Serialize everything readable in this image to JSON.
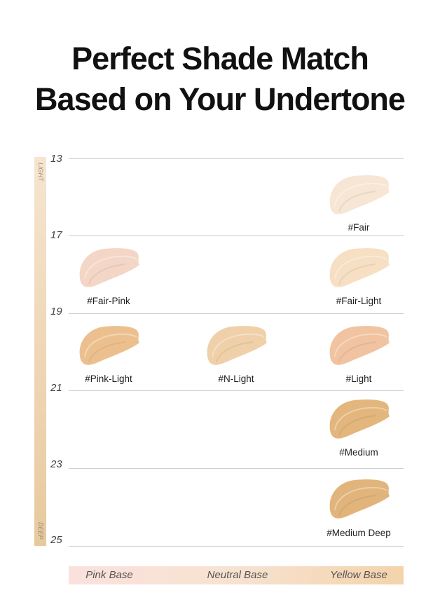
{
  "title": {
    "line1": "Perfect Shade Match",
    "line2": "Based on Your Undertone"
  },
  "scale": {
    "light_label": "LIGHT",
    "deep_label": "DEEP",
    "levels": [
      "13",
      "17",
      "19",
      "21",
      "23",
      "25"
    ]
  },
  "bases": [
    "Pink Base",
    "Neutral Base",
    "Yellow Base"
  ],
  "shades": [
    {
      "name": "#Fair",
      "base": "Yellow Base",
      "color": "#f6e6d3"
    },
    {
      "name": "#Fair-Pink",
      "base": "Pink Base",
      "color": "#f3d6c6"
    },
    {
      "name": "#Fair-Light",
      "base": "Yellow Base",
      "color": "#f6dfc3"
    },
    {
      "name": "#Pink-Light",
      "base": "Pink Base",
      "color": "#ecc08e"
    },
    {
      "name": "#N-Light",
      "base": "Neutral Base",
      "color": "#efd0a9"
    },
    {
      "name": "#Light",
      "base": "Yellow Base",
      "color": "#f1c3a0"
    },
    {
      "name": "#Medium",
      "base": "Yellow Base",
      "color": "#e2b67c"
    },
    {
      "name": "#Medium Deep",
      "base": "Yellow Base",
      "color": "#e0b47b"
    }
  ]
}
